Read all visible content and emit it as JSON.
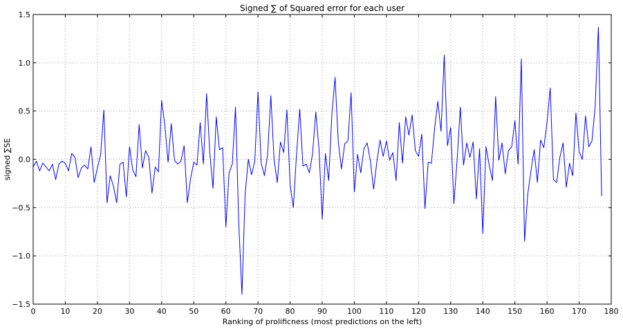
{
  "chart_data": {
    "type": "line",
    "title": "Signed ∑ of Squared error for each user",
    "xlabel": "Ranking of prolificness (most predictions on the left)",
    "ylabel": "signed ∑SE",
    "xlim": [
      0,
      180
    ],
    "ylim": [
      -1.5,
      1.5
    ],
    "grid": true,
    "line_color": "#0000ff",
    "xticks": [
      0,
      10,
      20,
      30,
      40,
      50,
      60,
      70,
      80,
      90,
      100,
      110,
      120,
      130,
      140,
      150,
      160,
      170,
      180
    ],
    "yticks": [
      -1.5,
      -1.0,
      -0.5,
      0.0,
      0.5,
      1.0,
      1.5
    ],
    "xtick_labels": [
      "0",
      "10",
      "20",
      "30",
      "40",
      "50",
      "60",
      "70",
      "80",
      "90",
      "100",
      "110",
      "120",
      "130",
      "140",
      "150",
      "160",
      "170",
      "180"
    ],
    "ytick_labels": [
      "−1.5",
      "−1.0",
      "−0.5",
      "0.0",
      "0.5",
      "1.0",
      "1.5"
    ],
    "series": [
      {
        "x": [
          0,
          1,
          2,
          3,
          4,
          5,
          6,
          7,
          8,
          9,
          10,
          11,
          12,
          13,
          14,
          15,
          16,
          17,
          18,
          19,
          20,
          21,
          22,
          23,
          24,
          25,
          26,
          27,
          28,
          29,
          30,
          31,
          32,
          33,
          34,
          35,
          36,
          37,
          38,
          39,
          40,
          41,
          42,
          43,
          44,
          45,
          46,
          47,
          48,
          49,
          50,
          51,
          52,
          53,
          54,
          55,
          56,
          57,
          58,
          59,
          60,
          61,
          62,
          63,
          64,
          65,
          66,
          67,
          68,
          69,
          70,
          71,
          72,
          73,
          74,
          75,
          76,
          77,
          78,
          79,
          80,
          81,
          82,
          83,
          84,
          85,
          86,
          87,
          88,
          89,
          90,
          91,
          92,
          93,
          94,
          95,
          96,
          97,
          98,
          99,
          100,
          101,
          102,
          103,
          104,
          105,
          106,
          107,
          108,
          109,
          110,
          111,
          112,
          113,
          114,
          115,
          116,
          117,
          118,
          119,
          120,
          121,
          122,
          123,
          124,
          125,
          126,
          127,
          128,
          129,
          130,
          131,
          132,
          133,
          134,
          135,
          136,
          137,
          138,
          139,
          140,
          141,
          142,
          143,
          144,
          145,
          146,
          147,
          148,
          149,
          150,
          151,
          152,
          153,
          154,
          155,
          156,
          157,
          158,
          159,
          160,
          161,
          162,
          163,
          164,
          165,
          166,
          167,
          168,
          169,
          170,
          171,
          172,
          173,
          174,
          175,
          176,
          177
        ],
        "y": [
          -0.08,
          -0.02,
          -0.12,
          -0.04,
          -0.08,
          -0.12,
          -0.05,
          -0.21,
          -0.05,
          -0.02,
          -0.04,
          -0.12,
          0.06,
          0.02,
          -0.19,
          -0.09,
          -0.06,
          -0.1,
          0.13,
          -0.24,
          -0.09,
          0.05,
          0.51,
          -0.45,
          -0.17,
          -0.28,
          -0.45,
          -0.05,
          -0.03,
          -0.39,
          0.13,
          -0.11,
          -0.18,
          0.36,
          -0.09,
          0.09,
          0.02,
          -0.35,
          -0.08,
          -0.13,
          0.61,
          0.35,
          -0.03,
          0.37,
          -0.01,
          -0.05,
          -0.02,
          0.14,
          -0.45,
          -0.2,
          -0.03,
          -0.06,
          0.38,
          -0.05,
          0.68,
          0.06,
          -0.3,
          0.44,
          0.1,
          0.12,
          -0.7,
          -0.14,
          -0.05,
          0.54,
          -0.65,
          -1.4,
          -0.36,
          0.0,
          -0.16,
          -0.02,
          0.7,
          -0.04,
          -0.17,
          0.05,
          0.66,
          0.0,
          -0.24,
          0.18,
          0.07,
          0.51,
          -0.26,
          -0.5,
          0.05,
          0.52,
          -0.07,
          -0.05,
          -0.14,
          0.06,
          0.49,
          0.11,
          -0.62,
          0.06,
          -0.22,
          0.46,
          0.85,
          0.18,
          -0.1,
          0.16,
          0.19,
          0.69,
          -0.34,
          0.05,
          -0.14,
          0.11,
          0.17,
          -0.02,
          -0.31,
          -0.03,
          0.2,
          0.03,
          0.19,
          -0.01,
          0.07,
          -0.22,
          0.38,
          -0.04,
          0.44,
          0.25,
          0.46,
          0.09,
          0.03,
          0.26,
          -0.51,
          -0.03,
          -0.04,
          0.32,
          0.6,
          0.29,
          1.08,
          0.14,
          0.33,
          -0.46,
          -0.01,
          0.54,
          -0.06,
          0.17,
          0.02,
          0.18,
          -0.41,
          0.11,
          -0.77,
          0.13,
          -0.06,
          -0.22,
          0.65,
          -0.01,
          0.17,
          -0.15,
          0.09,
          0.13,
          0.4,
          -0.05,
          1.04,
          -0.85,
          -0.36,
          -0.12,
          0.1,
          -0.24,
          0.2,
          0.12,
          0.38,
          0.74,
          -0.21,
          -0.24,
          0.02,
          0.17,
          -0.29,
          -0.04,
          -0.17,
          0.48,
          0.08,
          0.0,
          0.45,
          0.13,
          0.19,
          0.55,
          1.37,
          -0.38
        ]
      }
    ]
  }
}
